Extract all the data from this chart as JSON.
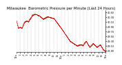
{
  "title": "Milwaukee  Barometric Pressure per Minute (Last 24 Hours)",
  "background_color": "#ffffff",
  "line_color": "#cc0000",
  "grid_color": "#c0c0c0",
  "y_min": 28.85,
  "y_max": 30.6,
  "y_ticks": [
    28.9,
    29.1,
    29.3,
    29.5,
    29.7,
    29.9,
    30.1,
    30.3,
    30.5
  ],
  "title_fontsize": 3.8,
  "tick_fontsize": 2.5,
  "line_width": 0.5,
  "marker_size": 0.6,
  "x_tick_labels": [
    "12a",
    "1",
    "2",
    "3",
    "4",
    "5",
    "6",
    "7",
    "8",
    "9",
    "10",
    "11",
    "12p",
    "1",
    "2",
    "3",
    "4",
    "5",
    "6",
    "7",
    "8",
    "9",
    "10",
    "11",
    "12a"
  ]
}
